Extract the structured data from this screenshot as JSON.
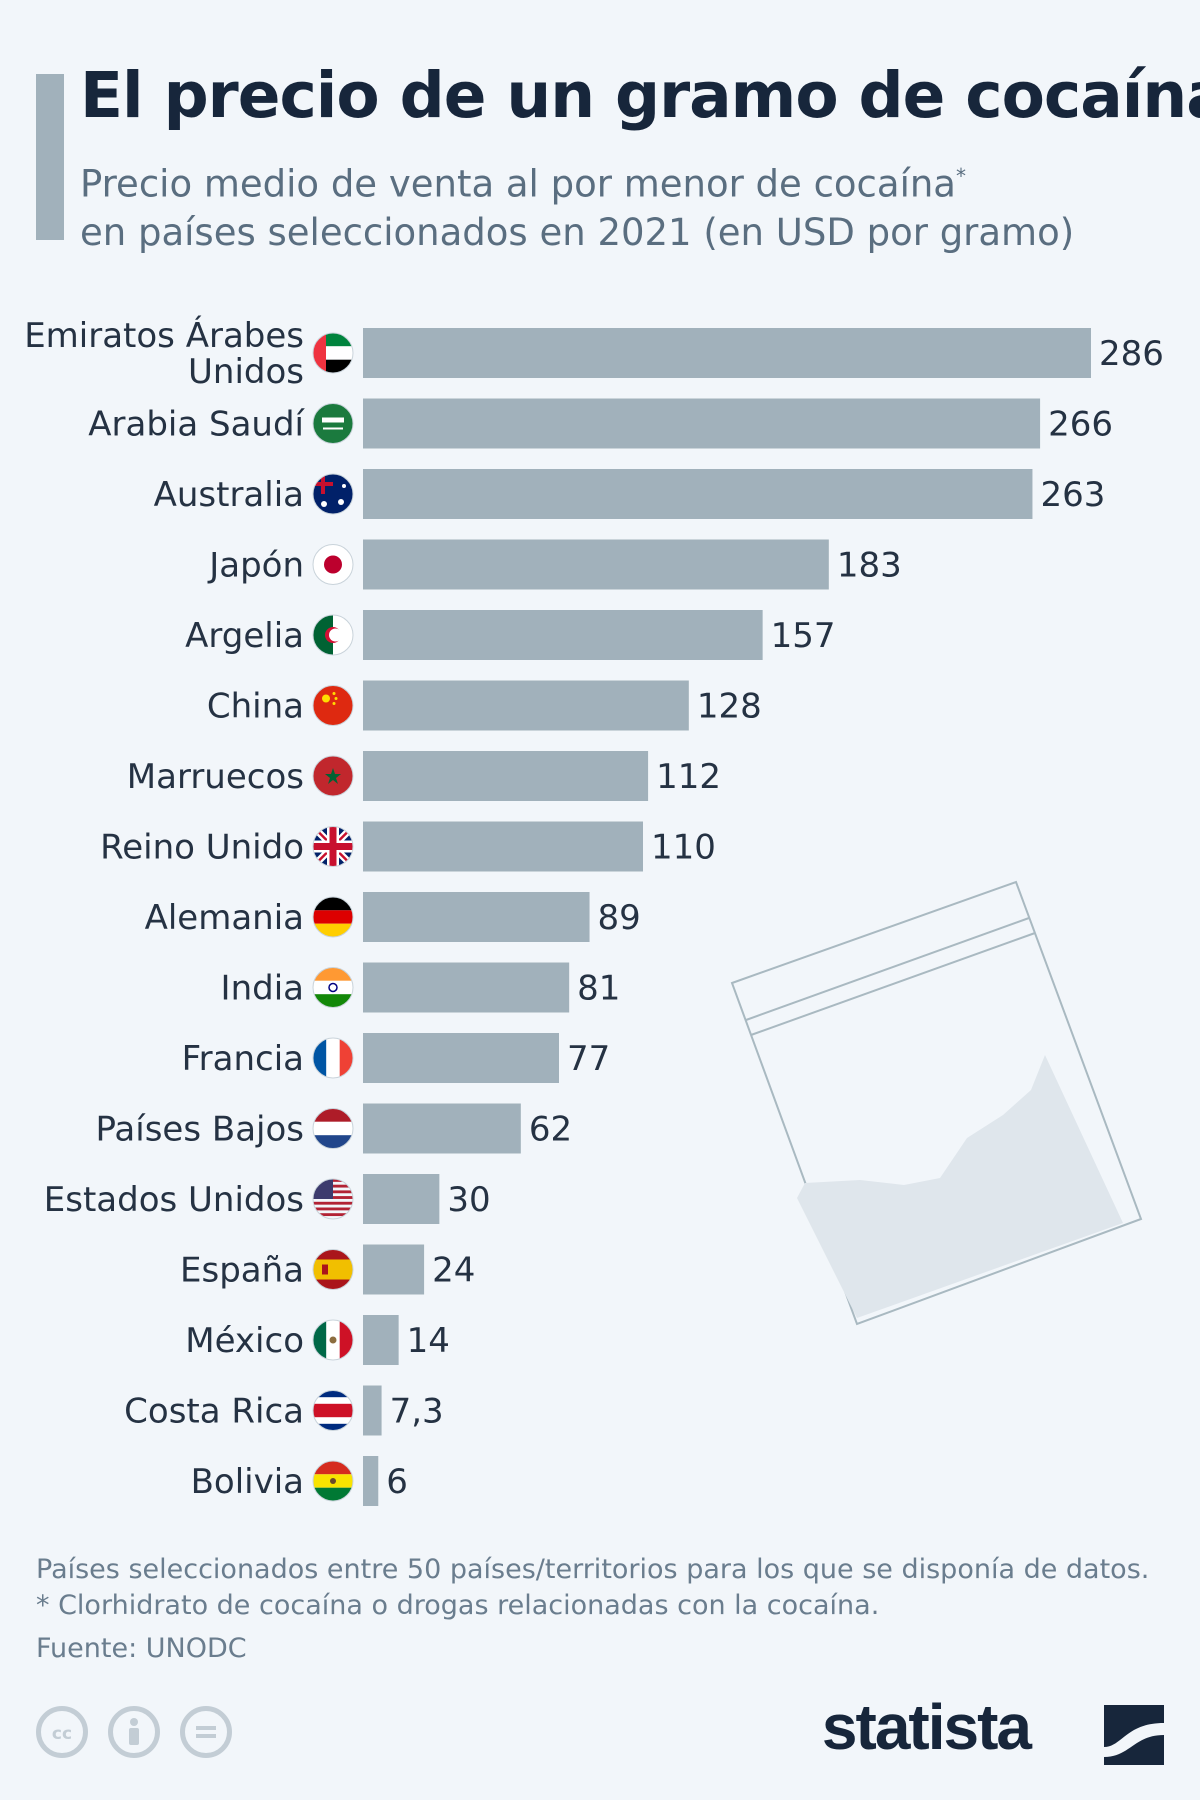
{
  "title": "El precio de un gramo de cocaína",
  "subtitle_line1": "Precio medio de venta al por menor de cocaína",
  "subtitle_asterisk": "*",
  "subtitle_line2": "en países seleccionados en 2021 (en USD por gramo)",
  "colors": {
    "bar": "#a1b1bb",
    "title": "#17263b",
    "background": "#f2f6fa"
  },
  "chart_data": {
    "type": "bar",
    "orientation": "horizontal",
    "categories": [
      "Emiratos Árabes Unidos",
      "Arabia Saudí",
      "Australia",
      "Japón",
      "Argelia",
      "China",
      "Marruecos",
      "Reino Unido",
      "Alemania",
      "India",
      "Francia",
      "Países Bajos",
      "Estados Unidos",
      "España",
      "México",
      "Costa Rica",
      "Bolivia"
    ],
    "category_lines": [
      [
        "Emiratos Árabes",
        "Unidos"
      ],
      [
        "Arabia Saudí"
      ],
      [
        "Australia"
      ],
      [
        "Japón"
      ],
      [
        "Argelia"
      ],
      [
        "China"
      ],
      [
        "Marruecos"
      ],
      [
        "Reino Unido"
      ],
      [
        "Alemania"
      ],
      [
        "India"
      ],
      [
        "Francia"
      ],
      [
        "Países Bajos"
      ],
      [
        "Estados Unidos"
      ],
      [
        "España"
      ],
      [
        "México"
      ],
      [
        "Costa Rica"
      ],
      [
        "Bolivia"
      ]
    ],
    "values": [
      286,
      266,
      263,
      183,
      157,
      128,
      112,
      110,
      89,
      81,
      77,
      62,
      30,
      24,
      14,
      7.3,
      6
    ],
    "value_labels": [
      "286",
      "266",
      "263",
      "183",
      "157",
      "128",
      "112",
      "110",
      "89",
      "81",
      "77",
      "62",
      "30",
      "24",
      "14",
      "7,3",
      "6"
    ],
    "flag_icons": [
      "uae-flag-icon",
      "saudi-arabia-flag-icon",
      "australia-flag-icon",
      "japan-flag-icon",
      "algeria-flag-icon",
      "china-flag-icon",
      "morocco-flag-icon",
      "uk-flag-icon",
      "germany-flag-icon",
      "india-flag-icon",
      "france-flag-icon",
      "netherlands-flag-icon",
      "usa-flag-icon",
      "spain-flag-icon",
      "mexico-flag-icon",
      "costa-rica-flag-icon",
      "bolivia-flag-icon"
    ],
    "xlim": [
      0,
      286
    ],
    "grid": false,
    "legend": "none"
  },
  "notes": {
    "line1": "Países seleccionados entre 50 países/territorios para los que se disponía de datos.",
    "line2": "* Clorhidrato de cocaína o drogas relacionadas con la cocaína.",
    "source": "Fuente: UNODC"
  },
  "brand": "statista"
}
